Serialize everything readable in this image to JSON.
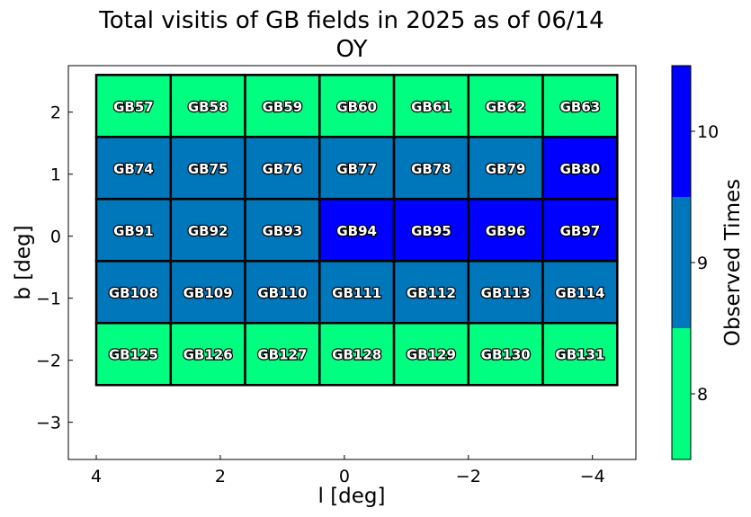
{
  "chart_data": {
    "type": "heatmap",
    "title": "Total visitis of GB fields in 2025 as of 06/14",
    "subtitle": "OY",
    "xlabel": "l [deg]",
    "ylabel": "b [deg]",
    "xlim": [
      4.45,
      -4.7
    ],
    "ylim": [
      -3.6,
      2.75
    ],
    "x_inverted": true,
    "xticks": [
      4,
      2,
      0,
      -2,
      -4
    ],
    "xtick_labels": [
      "4",
      "2",
      "0",
      "−2",
      "−4"
    ],
    "yticks": [
      2,
      1,
      0,
      -1,
      -2,
      -3
    ],
    "ytick_labels": [
      "2",
      "1",
      "0",
      "−1",
      "−2",
      "−3"
    ],
    "grid": false,
    "cell_width_deg": 1.2,
    "cell_height_deg": 1.0,
    "fields": [
      {
        "name": "GB57",
        "l": 3.4,
        "b": 2.1,
        "visits": 8
      },
      {
        "name": "GB58",
        "l": 2.2,
        "b": 2.1,
        "visits": 8
      },
      {
        "name": "GB59",
        "l": 1.0,
        "b": 2.1,
        "visits": 8
      },
      {
        "name": "GB60",
        "l": -0.2,
        "b": 2.1,
        "visits": 8
      },
      {
        "name": "GB61",
        "l": -1.4,
        "b": 2.1,
        "visits": 8
      },
      {
        "name": "GB62",
        "l": -2.6,
        "b": 2.1,
        "visits": 8
      },
      {
        "name": "GB63",
        "l": -3.8,
        "b": 2.1,
        "visits": 8
      },
      {
        "name": "GB74",
        "l": 3.4,
        "b": 1.1,
        "visits": 9
      },
      {
        "name": "GB75",
        "l": 2.2,
        "b": 1.1,
        "visits": 9
      },
      {
        "name": "GB76",
        "l": 1.0,
        "b": 1.1,
        "visits": 9
      },
      {
        "name": "GB77",
        "l": -0.2,
        "b": 1.1,
        "visits": 9
      },
      {
        "name": "GB78",
        "l": -1.4,
        "b": 1.1,
        "visits": 9
      },
      {
        "name": "GB79",
        "l": -2.6,
        "b": 1.1,
        "visits": 9
      },
      {
        "name": "GB80",
        "l": -3.8,
        "b": 1.1,
        "visits": 10
      },
      {
        "name": "GB91",
        "l": 3.4,
        "b": 0.1,
        "visits": 9
      },
      {
        "name": "GB92",
        "l": 2.2,
        "b": 0.1,
        "visits": 9
      },
      {
        "name": "GB93",
        "l": 1.0,
        "b": 0.1,
        "visits": 9
      },
      {
        "name": "GB94",
        "l": -0.2,
        "b": 0.1,
        "visits": 10
      },
      {
        "name": "GB95",
        "l": -1.4,
        "b": 0.1,
        "visits": 10
      },
      {
        "name": "GB96",
        "l": -2.6,
        "b": 0.1,
        "visits": 10
      },
      {
        "name": "GB97",
        "l": -3.8,
        "b": 0.1,
        "visits": 10
      },
      {
        "name": "GB108",
        "l": 3.4,
        "b": -0.9,
        "visits": 9
      },
      {
        "name": "GB109",
        "l": 2.2,
        "b": -0.9,
        "visits": 9
      },
      {
        "name": "GB110",
        "l": 1.0,
        "b": -0.9,
        "visits": 9
      },
      {
        "name": "GB111",
        "l": -0.2,
        "b": -0.9,
        "visits": 9
      },
      {
        "name": "GB112",
        "l": -1.4,
        "b": -0.9,
        "visits": 9
      },
      {
        "name": "GB113",
        "l": -2.6,
        "b": -0.9,
        "visits": 9
      },
      {
        "name": "GB114",
        "l": -3.8,
        "b": -0.9,
        "visits": 9
      },
      {
        "name": "GB125",
        "l": 3.4,
        "b": -1.9,
        "visits": 8
      },
      {
        "name": "GB126",
        "l": 2.2,
        "b": -1.9,
        "visits": 8
      },
      {
        "name": "GB127",
        "l": 1.0,
        "b": -1.9,
        "visits": 8
      },
      {
        "name": "GB128",
        "l": -0.2,
        "b": -1.9,
        "visits": 8
      },
      {
        "name": "GB129",
        "l": -1.4,
        "b": -1.9,
        "visits": 8
      },
      {
        "name": "GB130",
        "l": -2.6,
        "b": -1.9,
        "visits": 8
      },
      {
        "name": "GB131",
        "l": -3.8,
        "b": -1.9,
        "visits": 8
      }
    ],
    "colorbar": {
      "label": "Observed Times",
      "range": [
        7.5,
        10.5
      ],
      "bins": [
        {
          "value": 8,
          "color": "#00ff80"
        },
        {
          "value": 9,
          "color": "#0077bb"
        },
        {
          "value": 10,
          "color": "#0000ff"
        }
      ],
      "ticks": [
        8,
        9,
        10
      ],
      "tick_labels": [
        "8",
        "9",
        "10"
      ]
    }
  }
}
